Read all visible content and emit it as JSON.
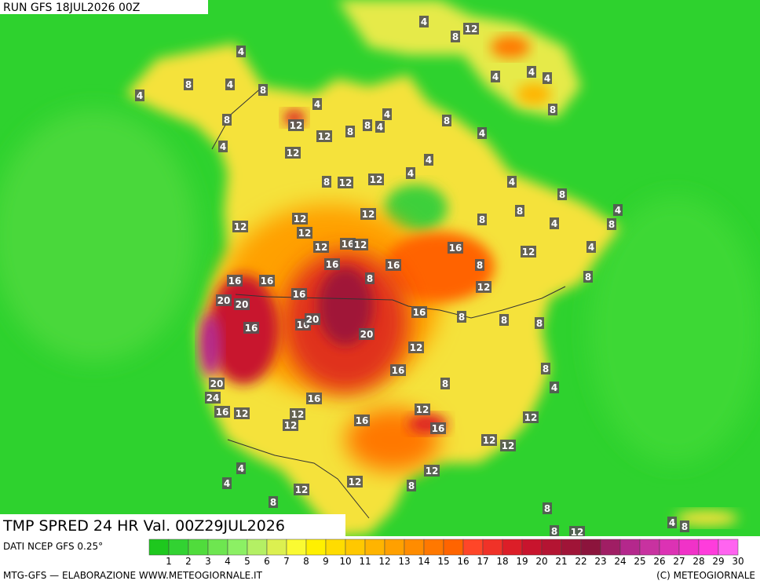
{
  "header": {
    "run": "RUN GFS 18JUL2026 00Z"
  },
  "footer": {
    "title": "TMP SPRED 24 HR Val. 00Z29JUL2026",
    "source": "DATI NCEP GFS 0.25°",
    "credit": "MTG-GFS — ELABORAZIONE WWW.METEOGIORNALE.IT",
    "copyright": "(C) METEOGIORNALE"
  },
  "colorbar": {
    "items": [
      {
        "value": 1,
        "color": "#1ec81e"
      },
      {
        "value": 2,
        "color": "#32d232"
      },
      {
        "value": 3,
        "color": "#50dc3c"
      },
      {
        "value": 4,
        "color": "#6ee650"
      },
      {
        "value": 5,
        "color": "#8cf064"
      },
      {
        "value": 6,
        "color": "#b4f064"
      },
      {
        "value": 7,
        "color": "#dcf050"
      },
      {
        "value": 8,
        "color": "#fafa32"
      },
      {
        "value": 9,
        "color": "#fff000"
      },
      {
        "value": 10,
        "color": "#ffdc00"
      },
      {
        "value": 11,
        "color": "#ffc800"
      },
      {
        "value": 12,
        "color": "#ffb400"
      },
      {
        "value": 13,
        "color": "#ffa000"
      },
      {
        "value": 14,
        "color": "#ff8c00"
      },
      {
        "value": 15,
        "color": "#ff7800"
      },
      {
        "value": 16,
        "color": "#ff6400"
      },
      {
        "value": 17,
        "color": "#ff4628"
      },
      {
        "value": 18,
        "color": "#f03228"
      },
      {
        "value": 19,
        "color": "#dc1e28"
      },
      {
        "value": 20,
        "color": "#c8142d"
      },
      {
        "value": 21,
        "color": "#b41432"
      },
      {
        "value": 22,
        "color": "#a01437"
      },
      {
        "value": 23,
        "color": "#8c143c"
      },
      {
        "value": 24,
        "color": "#a01e64"
      },
      {
        "value": 25,
        "color": "#b4288c"
      },
      {
        "value": 26,
        "color": "#c832a0"
      },
      {
        "value": 27,
        "color": "#dc32b4"
      },
      {
        "value": 28,
        "color": "#f032c8"
      },
      {
        "value": 29,
        "color": "#ff3cdc"
      },
      {
        "value": 30,
        "color": "#ff64f0"
      }
    ]
  },
  "map": {
    "labels": [
      4,
      8,
      4,
      4,
      8,
      8,
      4,
      12,
      4,
      12,
      12,
      8,
      8,
      4,
      4,
      4,
      8,
      12,
      4,
      4,
      4,
      8,
      8,
      12,
      12,
      4,
      4,
      8,
      4,
      4,
      8,
      8,
      8,
      4,
      8,
      4,
      12,
      12,
      12,
      12,
      12,
      16,
      12,
      16,
      16,
      16,
      12,
      4,
      8,
      8,
      16,
      16,
      8,
      12,
      20,
      20,
      16,
      16,
      16,
      20,
      20,
      16,
      8,
      8,
      8,
      12,
      16,
      8,
      4,
      8,
      20,
      24,
      16,
      12,
      16,
      12,
      12,
      16,
      12,
      16,
      12,
      12,
      12,
      4,
      4,
      12,
      12,
      8,
      12,
      8,
      8,
      4,
      8,
      8,
      12
    ]
  }
}
